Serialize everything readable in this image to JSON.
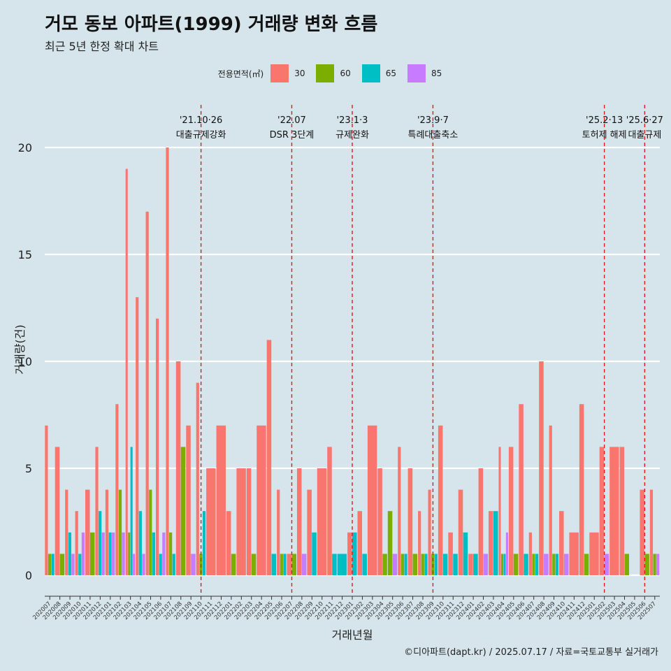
{
  "title": "거모 동보 아파트(1999) 거래량 변화 흐름",
  "subtitle": "최근 5년 한정 확대 차트",
  "caption": "©디아파트(dapt.kr) / 2025.07.17 / 자료=국토교통부 실거래가",
  "legend": {
    "title": "전용면적(㎡)",
    "items": [
      {
        "label": "30",
        "color": "#f8766d"
      },
      {
        "label": "60",
        "color": "#7cae00"
      },
      {
        "label": "65",
        "color": "#00bfc4"
      },
      {
        "label": "85",
        "color": "#c77cff"
      }
    ]
  },
  "chart_data": {
    "type": "bar",
    "xlabel": "거래년월",
    "ylabel": "거래량(건)",
    "ylim": [
      0,
      21
    ],
    "yticks": [
      0,
      5,
      10,
      15,
      20
    ],
    "grid": true,
    "legend_position": "top",
    "categories": [
      "202007",
      "202008",
      "202009",
      "202010",
      "202011",
      "202012",
      "202101",
      "202102",
      "202103",
      "202104",
      "202105",
      "202106",
      "202107",
      "202108",
      "202109",
      "202110",
      "202111",
      "202112",
      "202201",
      "202202",
      "202203",
      "202204",
      "202205",
      "202206",
      "202207",
      "202208",
      "202209",
      "202210",
      "202211",
      "202212",
      "202301",
      "202302",
      "202303",
      "202304",
      "202305",
      "202306",
      "202307",
      "202308",
      "202309",
      "202310",
      "202311",
      "202312",
      "202401",
      "202402",
      "202403",
      "202404",
      "202405",
      "202406",
      "202407",
      "202408",
      "202409",
      "202410",
      "202411",
      "202412",
      "202501",
      "202502",
      "202503",
      "202504",
      "202505",
      "202506",
      "202507"
    ],
    "series": [
      {
        "name": "30",
        "color": "#f8766d",
        "values": [
          7,
          6,
          4,
          3,
          4,
          6,
          4,
          8,
          19,
          13,
          17,
          12,
          20,
          10,
          7,
          9,
          5,
          7,
          3,
          5,
          5,
          7,
          11,
          4,
          1,
          5,
          4,
          5,
          6,
          0,
          2,
          3,
          7,
          5,
          0,
          6,
          5,
          3,
          4,
          7,
          2,
          4,
          1,
          5,
          3,
          6,
          6,
          8,
          2,
          10,
          7,
          3,
          2,
          8,
          2,
          6,
          6,
          6,
          0,
          4,
          4
        ]
      },
      {
        "name": "60",
        "color": "#7cae00",
        "values": [
          1,
          1,
          0,
          0,
          2,
          0,
          0,
          4,
          2,
          0,
          4,
          0,
          2,
          6,
          0,
          1,
          0,
          0,
          1,
          0,
          1,
          0,
          0,
          1,
          1,
          0,
          0,
          0,
          0,
          0,
          0,
          0,
          0,
          1,
          3,
          1,
          1,
          1,
          1,
          0,
          0,
          0,
          0,
          0,
          0,
          1,
          1,
          0,
          1,
          0,
          1,
          0,
          0,
          1,
          0,
          0,
          0,
          1,
          0,
          1,
          1
        ]
      },
      {
        "name": "65",
        "color": "#00bfc4",
        "values": [
          1,
          0,
          2,
          1,
          0,
          3,
          2,
          0,
          6,
          3,
          2,
          1,
          1,
          0,
          0,
          3,
          0,
          0,
          0,
          0,
          0,
          0,
          1,
          1,
          0,
          0,
          2,
          0,
          1,
          1,
          2,
          1,
          0,
          0,
          0,
          1,
          0,
          1,
          1,
          1,
          1,
          2,
          1,
          0,
          3,
          1,
          0,
          1,
          1,
          0,
          1,
          0,
          0,
          0,
          0,
          0,
          0,
          0,
          0,
          0,
          0
        ]
      },
      {
        "name": "85",
        "color": "#c77cff",
        "values": [
          0,
          0,
          1,
          2,
          0,
          2,
          2,
          2,
          1,
          1,
          0,
          2,
          0,
          0,
          1,
          0,
          0,
          0,
          0,
          0,
          0,
          0,
          0,
          0,
          0,
          1,
          0,
          0,
          0,
          0,
          0,
          0,
          0,
          0,
          1,
          0,
          0,
          0,
          0,
          0,
          0,
          0,
          0,
          1,
          0,
          2,
          0,
          0,
          0,
          1,
          0,
          1,
          0,
          0,
          0,
          1,
          0,
          0,
          0,
          0,
          1
        ]
      }
    ],
    "annotations": [
      {
        "at": "202110",
        "date": "'21.10·26",
        "text": "대출규제강화"
      },
      {
        "at": "202207",
        "date": "'22.07",
        "text": "DSR 3단계"
      },
      {
        "at": "202301",
        "date": "'23.1·3",
        "text": "규제완화"
      },
      {
        "at": "202309",
        "date": "'23.9·7",
        "text": "특례대출축소"
      },
      {
        "at": "202502",
        "date": "'25.2·13",
        "text": "토허제 해제"
      },
      {
        "at": "202506",
        "date": "'25.6·27",
        "text": "대출규제"
      }
    ]
  }
}
